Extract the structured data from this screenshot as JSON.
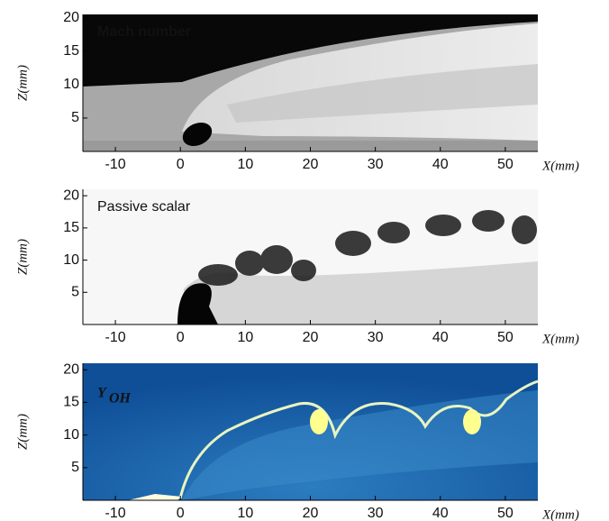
{
  "panels": [
    {
      "label": "Mach number",
      "xlabel": "X(mm)",
      "ylabel": "Z(mm)",
      "xlim": [
        -15,
        55
      ],
      "ylim": [
        0,
        20.5
      ],
      "xticks": [
        -10,
        0,
        10,
        20,
        30,
        40,
        50
      ],
      "yticks": [
        5,
        10,
        15,
        20
      ]
    },
    {
      "label": "Passive scalar",
      "xlabel": "X(mm)",
      "ylabel": "Z(mm)",
      "xlim": [
        -15,
        55
      ],
      "ylim": [
        0,
        21
      ],
      "xticks": [
        -10,
        0,
        10,
        20,
        30,
        40,
        50
      ],
      "yticks": [
        5,
        10,
        15,
        20
      ]
    },
    {
      "label": "Y",
      "label_sub": "OH",
      "xlabel": "X(mm)",
      "ylabel": "Z(mm)",
      "xlim": [
        -15,
        55
      ],
      "ylim": [
        0,
        21
      ],
      "xticks": [
        -10,
        0,
        10,
        20,
        30,
        40,
        50
      ],
      "yticks": [
        5,
        10,
        15,
        20
      ]
    }
  ]
}
